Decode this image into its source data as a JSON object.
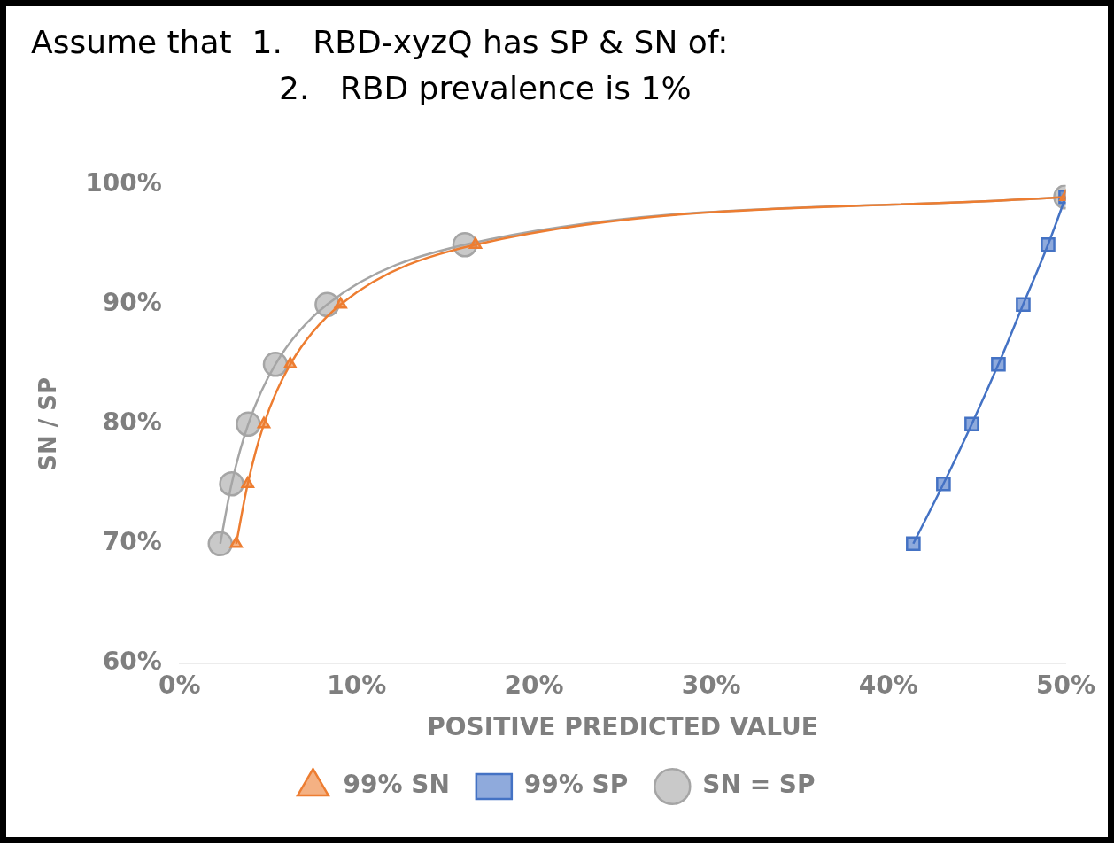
{
  "chart_data": {
    "type": "line",
    "title": "Assume that  1.   RBD-xyzQ has SP & SN of:",
    "subtitle": "2.   RBD prevalence is 1%",
    "xlabel": "POSITIVE PREDICTED VALUE",
    "ylabel": "SN / SP",
    "series": [
      {
        "name": "99% SN",
        "color": "#ed7d31",
        "marker": "triangle",
        "x": [
          3.2,
          3.85,
          4.76,
          6.25,
          9.09,
          16.7,
          50
        ],
        "values": [
          70,
          75,
          80,
          85,
          90,
          95,
          99
        ]
      },
      {
        "name": "99% SP",
        "color": "#4472c4",
        "marker": "square",
        "x": [
          41.4,
          43.1,
          44.7,
          46.2,
          47.6,
          49.0,
          50
        ],
        "values": [
          70,
          75,
          80,
          85,
          90,
          95,
          99
        ]
      },
      {
        "name": "SN = SP",
        "color": "#a5a5a5",
        "marker": "circle",
        "x": [
          2.3,
          2.94,
          3.88,
          5.41,
          8.33,
          16.1,
          50
        ],
        "values": [
          70,
          75,
          80,
          85,
          90,
          95,
          99
        ]
      }
    ],
    "xlim": [
      0,
      50
    ],
    "xticks": [
      {
        "value": 0,
        "label": "0%"
      },
      {
        "value": 10,
        "label": "10%"
      },
      {
        "value": 20,
        "label": "20%"
      },
      {
        "value": 30,
        "label": "30%"
      },
      {
        "value": 40,
        "label": "40%"
      },
      {
        "value": 50,
        "label": "50%"
      }
    ],
    "ylim": [
      60,
      100
    ],
    "yticks": [
      {
        "value": 60,
        "label": "60%"
      },
      {
        "value": 70,
        "label": "70%"
      },
      {
        "value": 80,
        "label": "80%"
      },
      {
        "value": 90,
        "label": "90%"
      },
      {
        "value": 100,
        "label": "100%"
      }
    ],
    "grid": false,
    "legend": "bottom",
    "line_style": "solid"
  }
}
